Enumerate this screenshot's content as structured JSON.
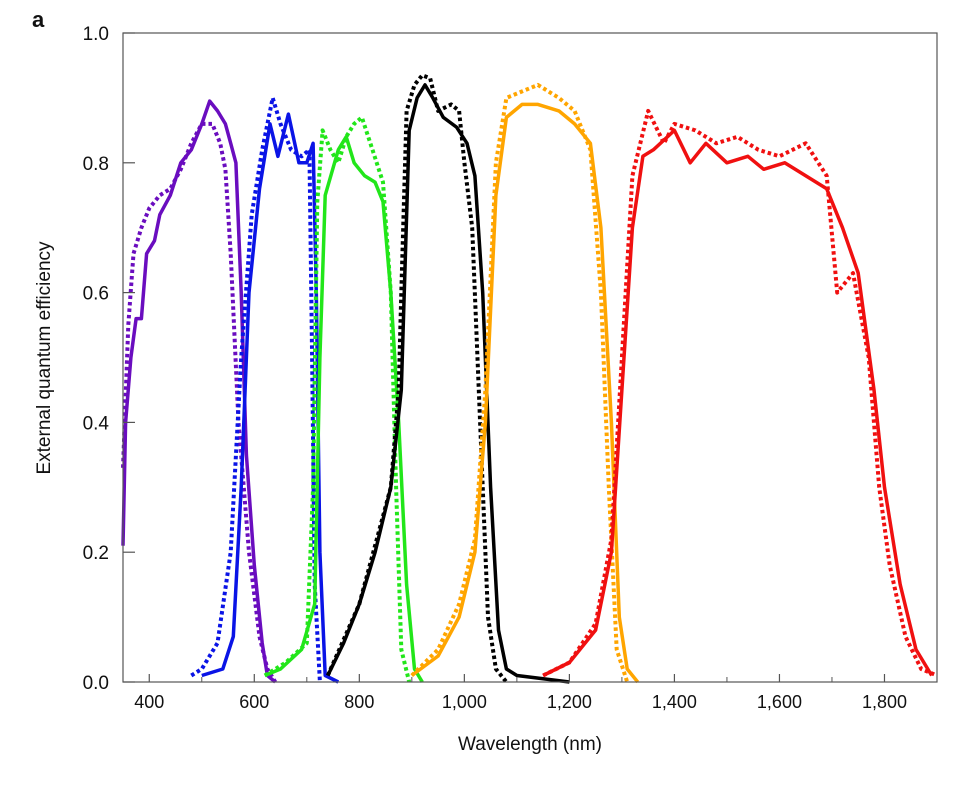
{
  "chart_data": {
    "type": "line",
    "panel_label": "a",
    "xlabel": "Wavelength (nm)",
    "ylabel": "External quantum efficiency",
    "xlim": [
      350,
      1900
    ],
    "ylim": [
      0,
      1.0
    ],
    "xticks": [
      400,
      600,
      800,
      1000,
      1200,
      1400,
      1600,
      1800
    ],
    "xtick_labels": [
      "400",
      "600",
      "800",
      "1,000",
      "1,200",
      "1,400",
      "1,600",
      "1,800"
    ],
    "yticks": [
      0,
      0.2,
      0.4,
      0.6,
      0.8,
      1.0
    ],
    "ytick_labels": [
      "0.0",
      "0.2",
      "0.4",
      "0.6",
      "0.8",
      "1.0"
    ],
    "grid": false,
    "series": [
      {
        "color": "#6a0dbf",
        "style": "solid",
        "points": [
          [
            350,
            0.21
          ],
          [
            355,
            0.4
          ],
          [
            365,
            0.5
          ],
          [
            375,
            0.56
          ],
          [
            385,
            0.56
          ],
          [
            395,
            0.66
          ],
          [
            410,
            0.68
          ],
          [
            420,
            0.72
          ],
          [
            440,
            0.75
          ],
          [
            460,
            0.8
          ],
          [
            480,
            0.82
          ],
          [
            500,
            0.86
          ],
          [
            515,
            0.895
          ],
          [
            530,
            0.88
          ],
          [
            545,
            0.86
          ],
          [
            555,
            0.83
          ],
          [
            565,
            0.8
          ],
          [
            575,
            0.6
          ],
          [
            585,
            0.35
          ],
          [
            600,
            0.18
          ],
          [
            615,
            0.06
          ],
          [
            625,
            0.01
          ],
          [
            640,
            0
          ]
        ]
      },
      {
        "color": "#6a0dbf",
        "style": "dotted",
        "points": [
          [
            350,
            0.33
          ],
          [
            360,
            0.55
          ],
          [
            370,
            0.66
          ],
          [
            385,
            0.7
          ],
          [
            400,
            0.73
          ],
          [
            420,
            0.75
          ],
          [
            440,
            0.76
          ],
          [
            460,
            0.79
          ],
          [
            480,
            0.83
          ],
          [
            500,
            0.86
          ],
          [
            520,
            0.86
          ],
          [
            535,
            0.83
          ],
          [
            545,
            0.79
          ],
          [
            555,
            0.66
          ],
          [
            570,
            0.4
          ],
          [
            590,
            0.2
          ],
          [
            610,
            0.07
          ],
          [
            625,
            0.02
          ],
          [
            640,
            0
          ]
        ]
      },
      {
        "color": "#0a14e6",
        "style": "solid",
        "points": [
          [
            500,
            0.01
          ],
          [
            540,
            0.02
          ],
          [
            560,
            0.07
          ],
          [
            575,
            0.3
          ],
          [
            590,
            0.6
          ],
          [
            610,
            0.76
          ],
          [
            630,
            0.86
          ],
          [
            645,
            0.81
          ],
          [
            665,
            0.875
          ],
          [
            685,
            0.8
          ],
          [
            700,
            0.8
          ],
          [
            712,
            0.83
          ],
          [
            718,
            0.6
          ],
          [
            725,
            0.2
          ],
          [
            735,
            0.01
          ],
          [
            760,
            0
          ]
        ]
      },
      {
        "color": "#0a14e6",
        "style": "dotted",
        "points": [
          [
            480,
            0.01
          ],
          [
            500,
            0.02
          ],
          [
            530,
            0.06
          ],
          [
            555,
            0.2
          ],
          [
            575,
            0.5
          ],
          [
            595,
            0.72
          ],
          [
            615,
            0.82
          ],
          [
            635,
            0.9
          ],
          [
            650,
            0.86
          ],
          [
            670,
            0.82
          ],
          [
            690,
            0.81
          ],
          [
            705,
            0.82
          ],
          [
            710,
            0.5
          ],
          [
            715,
            0.15
          ],
          [
            725,
            0
          ]
        ]
      },
      {
        "color": "#22e61a",
        "style": "solid",
        "points": [
          [
            620,
            0.01
          ],
          [
            650,
            0.02
          ],
          [
            690,
            0.05
          ],
          [
            715,
            0.12
          ],
          [
            725,
            0.5
          ],
          [
            735,
            0.75
          ],
          [
            760,
            0.82
          ],
          [
            775,
            0.84
          ],
          [
            790,
            0.8
          ],
          [
            810,
            0.78
          ],
          [
            830,
            0.77
          ],
          [
            845,
            0.74
          ],
          [
            860,
            0.6
          ],
          [
            875,
            0.4
          ],
          [
            890,
            0.15
          ],
          [
            905,
            0.02
          ],
          [
            920,
            0
          ]
        ]
      },
      {
        "color": "#22e61a",
        "style": "dotted",
        "points": [
          [
            620,
            0.01
          ],
          [
            660,
            0.03
          ],
          [
            700,
            0.06
          ],
          [
            712,
            0.3
          ],
          [
            720,
            0.74
          ],
          [
            730,
            0.85
          ],
          [
            745,
            0.82
          ],
          [
            760,
            0.8
          ],
          [
            775,
            0.84
          ],
          [
            790,
            0.86
          ],
          [
            805,
            0.87
          ],
          [
            825,
            0.82
          ],
          [
            845,
            0.77
          ],
          [
            860,
            0.6
          ],
          [
            870,
            0.3
          ],
          [
            880,
            0.05
          ],
          [
            895,
            0
          ]
        ]
      },
      {
        "color": "#000000",
        "style": "solid",
        "points": [
          [
            740,
            0.01
          ],
          [
            770,
            0.06
          ],
          [
            800,
            0.12
          ],
          [
            830,
            0.2
          ],
          [
            860,
            0.3
          ],
          [
            880,
            0.45
          ],
          [
            895,
            0.85
          ],
          [
            910,
            0.9
          ],
          [
            925,
            0.92
          ],
          [
            940,
            0.9
          ],
          [
            960,
            0.87
          ],
          [
            985,
            0.855
          ],
          [
            1005,
            0.83
          ],
          [
            1020,
            0.78
          ],
          [
            1035,
            0.6
          ],
          [
            1050,
            0.3
          ],
          [
            1065,
            0.08
          ],
          [
            1080,
            0.02
          ],
          [
            1100,
            0.01
          ],
          [
            1200,
            0
          ]
        ]
      },
      {
        "color": "#000000",
        "style": "dotted",
        "points": [
          [
            740,
            0.01
          ],
          [
            800,
            0.12
          ],
          [
            860,
            0.3
          ],
          [
            875,
            0.45
          ],
          [
            880,
            0.6
          ],
          [
            890,
            0.88
          ],
          [
            905,
            0.92
          ],
          [
            920,
            0.935
          ],
          [
            935,
            0.93
          ],
          [
            950,
            0.88
          ],
          [
            975,
            0.89
          ],
          [
            990,
            0.88
          ],
          [
            1000,
            0.8
          ],
          [
            1015,
            0.7
          ],
          [
            1030,
            0.4
          ],
          [
            1045,
            0.1
          ],
          [
            1060,
            0.02
          ],
          [
            1080,
            0
          ]
        ]
      },
      {
        "color": "#ffa500",
        "style": "solid",
        "points": [
          [
            900,
            0.01
          ],
          [
            950,
            0.04
          ],
          [
            990,
            0.1
          ],
          [
            1020,
            0.2
          ],
          [
            1040,
            0.4
          ],
          [
            1060,
            0.75
          ],
          [
            1080,
            0.87
          ],
          [
            1110,
            0.89
          ],
          [
            1140,
            0.89
          ],
          [
            1180,
            0.88
          ],
          [
            1210,
            0.86
          ],
          [
            1240,
            0.83
          ],
          [
            1260,
            0.7
          ],
          [
            1280,
            0.4
          ],
          [
            1295,
            0.1
          ],
          [
            1310,
            0.02
          ],
          [
            1330,
            0
          ]
        ]
      },
      {
        "color": "#ffa500",
        "style": "dotted",
        "points": [
          [
            900,
            0.01
          ],
          [
            950,
            0.05
          ],
          [
            990,
            0.12
          ],
          [
            1020,
            0.22
          ],
          [
            1040,
            0.45
          ],
          [
            1060,
            0.8
          ],
          [
            1080,
            0.9
          ],
          [
            1110,
            0.91
          ],
          [
            1140,
            0.92
          ],
          [
            1180,
            0.9
          ],
          [
            1210,
            0.88
          ],
          [
            1240,
            0.82
          ],
          [
            1260,
            0.6
          ],
          [
            1275,
            0.3
          ],
          [
            1290,
            0.05
          ],
          [
            1310,
            0
          ]
        ]
      },
      {
        "color": "#f01010",
        "style": "solid",
        "points": [
          [
            1150,
            0.01
          ],
          [
            1200,
            0.03
          ],
          [
            1250,
            0.08
          ],
          [
            1280,
            0.2
          ],
          [
            1300,
            0.45
          ],
          [
            1320,
            0.7
          ],
          [
            1340,
            0.81
          ],
          [
            1360,
            0.82
          ],
          [
            1400,
            0.85
          ],
          [
            1430,
            0.8
          ],
          [
            1460,
            0.83
          ],
          [
            1500,
            0.8
          ],
          [
            1540,
            0.81
          ],
          [
            1570,
            0.79
          ],
          [
            1610,
            0.8
          ],
          [
            1650,
            0.78
          ],
          [
            1690,
            0.76
          ],
          [
            1720,
            0.7
          ],
          [
            1750,
            0.63
          ],
          [
            1780,
            0.45
          ],
          [
            1800,
            0.3
          ],
          [
            1830,
            0.15
          ],
          [
            1860,
            0.05
          ],
          [
            1890,
            0.01
          ]
        ]
      },
      {
        "color": "#f01010",
        "style": "dotted",
        "points": [
          [
            1150,
            0.01
          ],
          [
            1200,
            0.03
          ],
          [
            1250,
            0.09
          ],
          [
            1280,
            0.22
          ],
          [
            1300,
            0.5
          ],
          [
            1320,
            0.78
          ],
          [
            1350,
            0.88
          ],
          [
            1380,
            0.83
          ],
          [
            1400,
            0.86
          ],
          [
            1440,
            0.85
          ],
          [
            1480,
            0.83
          ],
          [
            1520,
            0.84
          ],
          [
            1560,
            0.82
          ],
          [
            1600,
            0.81
          ],
          [
            1650,
            0.83
          ],
          [
            1690,
            0.78
          ],
          [
            1710,
            0.6
          ],
          [
            1740,
            0.63
          ],
          [
            1770,
            0.5
          ],
          [
            1790,
            0.3
          ],
          [
            1810,
            0.18
          ],
          [
            1840,
            0.07
          ],
          [
            1870,
            0.02
          ],
          [
            1900,
            0.01
          ]
        ]
      }
    ]
  }
}
